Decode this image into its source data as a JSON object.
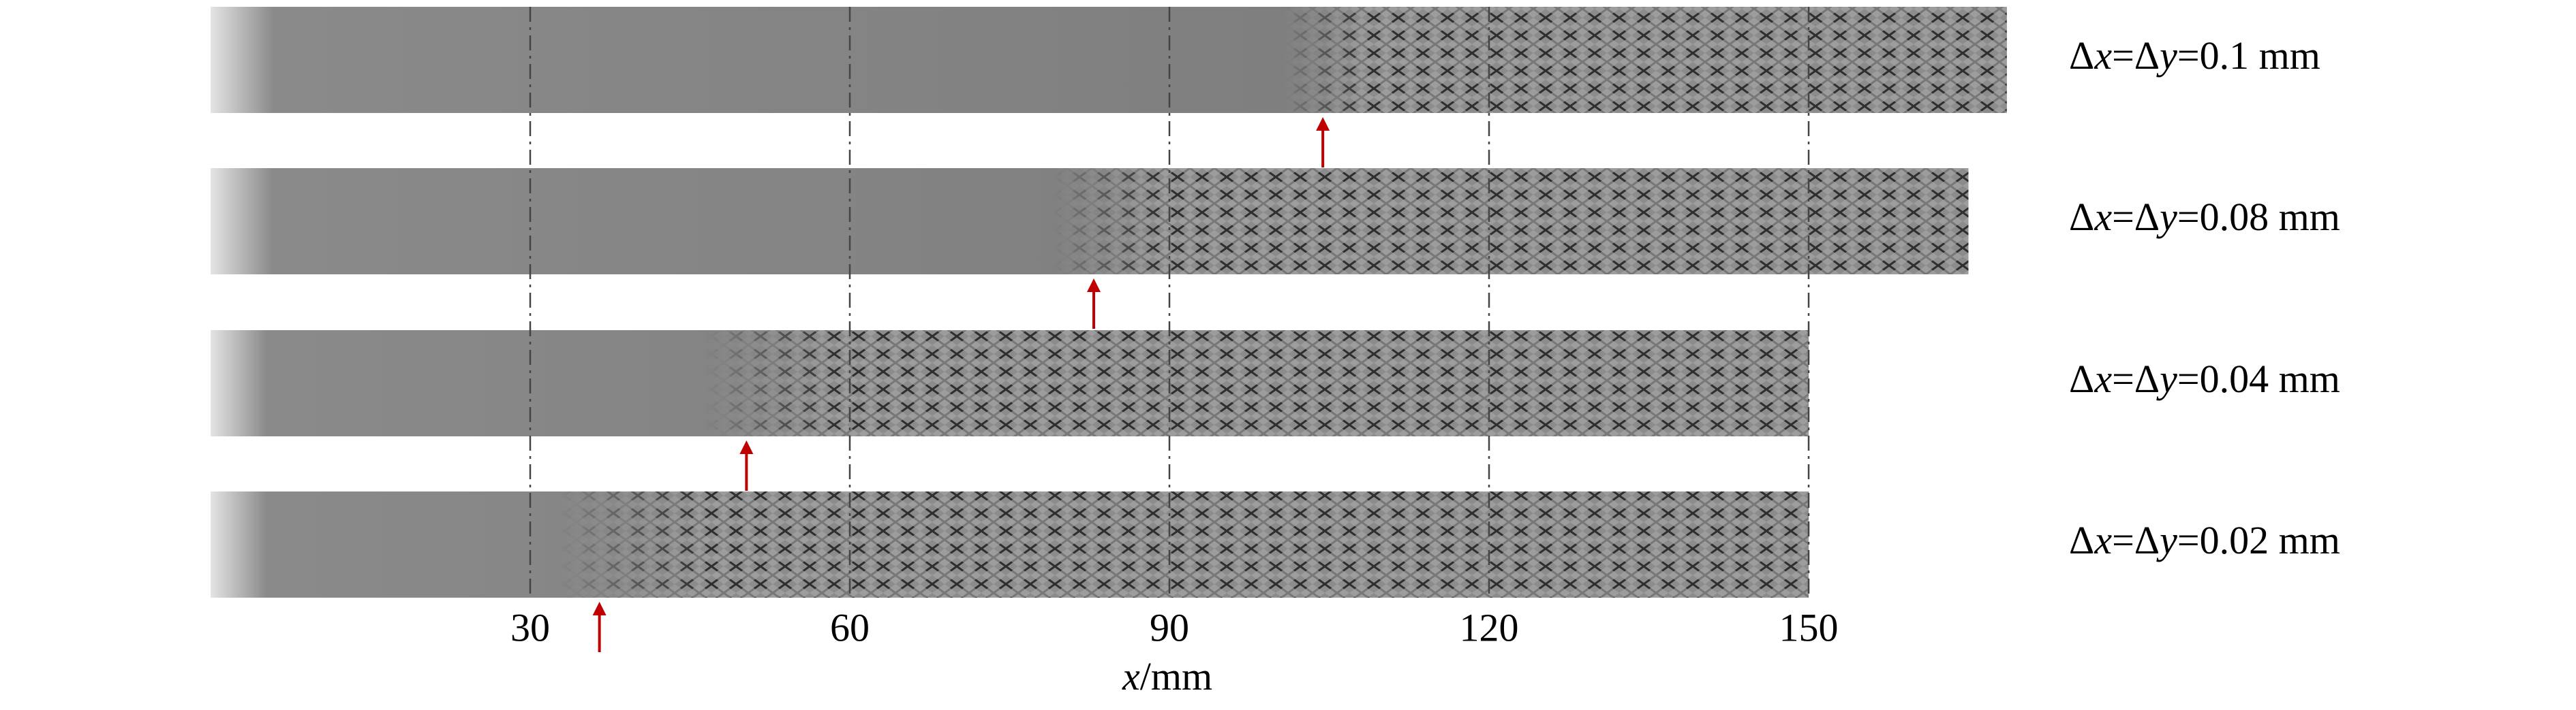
{
  "chart_data": {
    "type": "strips",
    "xlabel": "x/mm",
    "xlim": [
      0,
      150
    ],
    "xticks": [
      30,
      60,
      90,
      120,
      150
    ],
    "grid": true,
    "strips": [
      {
        "name": "Δx=Δy=0.1 mm",
        "extent": 168.6,
        "onset": 104.4
      },
      {
        "name": "Δx=Δy=0.08 mm",
        "extent": 165.0,
        "onset": 82.9
      },
      {
        "name": "Δx=Δy=0.04 mm",
        "extent": 150.0,
        "onset": 50.3
      },
      {
        "name": "Δx=Δy=0.02 mm",
        "extent": 150.0,
        "onset": 36.5
      }
    ],
    "arrow_color": "#c00000"
  }
}
